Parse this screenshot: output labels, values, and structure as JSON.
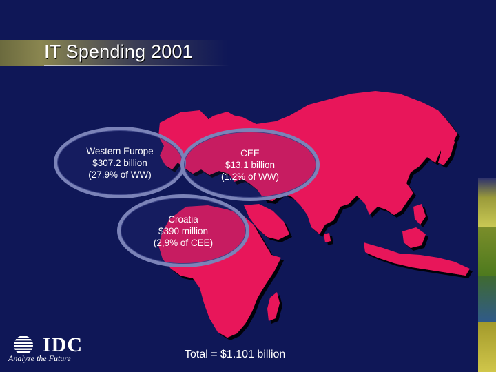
{
  "slide": {
    "title": "IT Spending 2001",
    "total": "Total = $1.101 billion"
  },
  "regions": {
    "western_europe": {
      "line1": "Western Europe",
      "line2": "$307.2 billion",
      "line3": "(27.9% of WW)"
    },
    "cee": {
      "line1": "CEE",
      "line2": "$13.1 billion",
      "line3": "(1.2% of WW)"
    },
    "croatia": {
      "line1": "Croatia",
      "line2": "$390 million",
      "line3": "(2,9% of CEE)"
    }
  },
  "logo": {
    "wordmark": "IDC",
    "tagline": "Analyze the Future"
  },
  "colors": {
    "background": "#0f1757",
    "landmass": "#e8195a",
    "bubble_border": "#7b83b8"
  }
}
